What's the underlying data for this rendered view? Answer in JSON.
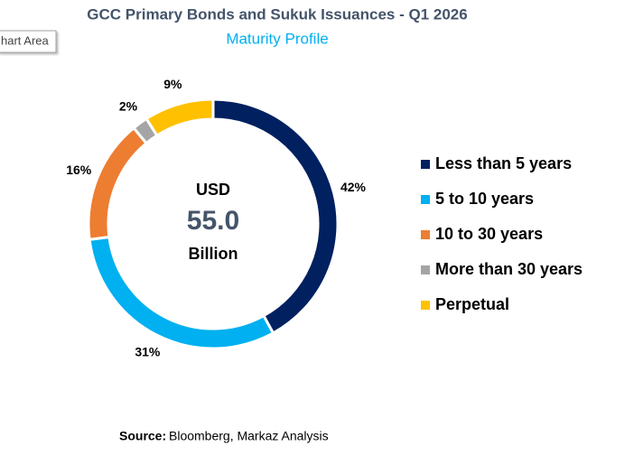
{
  "tooltip": "hart Area",
  "chart_data": {
    "type": "pie",
    "donut": true,
    "title": "GCC Primary Bonds and Sukuk Issuances - Q1 2026",
    "subtitle": "Maturity Profile",
    "categories": [
      "Less than 5 years",
      "5 to 10 years",
      "10 to 30 years",
      "More than 30 years",
      "Perpetual"
    ],
    "values": [
      42,
      31,
      16,
      2,
      9
    ],
    "value_labels": [
      "42%",
      "31%",
      "16%",
      "2%",
      "9%"
    ],
    "colors": [
      "#002060",
      "#00b0f0",
      "#ed7d31",
      "#a5a5a5",
      "#ffc000"
    ],
    "center_text": [
      "USD",
      "55.0",
      "Billion"
    ],
    "legend": "right",
    "source": {
      "label": "Source:",
      "text": "Bloomberg, Markaz Analysis"
    }
  }
}
